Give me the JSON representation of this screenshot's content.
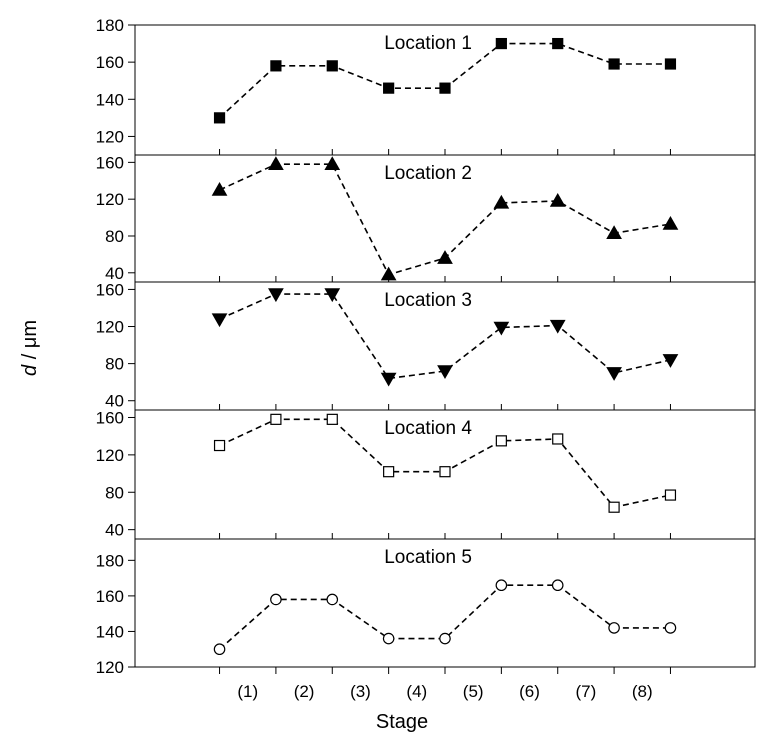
{
  "chart_data": [
    {
      "type": "line",
      "title": "Location 1",
      "marker": "filled-square",
      "ylim": [
        110,
        180
      ],
      "yticks": [
        120,
        140,
        160,
        180
      ],
      "x": [
        1,
        2,
        3,
        4,
        5,
        6,
        7,
        8,
        9
      ],
      "values": [
        130,
        158,
        158,
        146,
        146,
        170,
        170,
        159,
        159
      ]
    },
    {
      "type": "line",
      "title": "Location 2",
      "marker": "filled-triangle-up",
      "ylim": [
        30,
        168
      ],
      "yticks": [
        40,
        80,
        120,
        160
      ],
      "x": [
        1,
        2,
        3,
        4,
        5,
        6,
        7,
        8,
        9
      ],
      "values": [
        130,
        158,
        158,
        38,
        56,
        116,
        118,
        83,
        93
      ]
    },
    {
      "type": "line",
      "title": "Location 3",
      "marker": "filled-triangle-down",
      "ylim": [
        30,
        168
      ],
      "yticks": [
        40,
        80,
        120,
        160
      ],
      "x": [
        1,
        2,
        3,
        4,
        5,
        6,
        7,
        8,
        9
      ],
      "values": [
        128,
        155,
        155,
        64,
        72,
        119,
        121,
        70,
        84
      ]
    },
    {
      "type": "line",
      "title": "Location 4",
      "marker": "open-square",
      "ylim": [
        30,
        168
      ],
      "yticks": [
        40,
        80,
        120,
        160
      ],
      "x": [
        1,
        2,
        3,
        4,
        5,
        6,
        7,
        8,
        9
      ],
      "values": [
        130,
        158,
        158,
        102,
        102,
        135,
        137,
        64,
        77
      ]
    },
    {
      "type": "line",
      "title": "Location 5",
      "marker": "open-circle",
      "ylim": [
        120,
        192
      ],
      "yticks": [
        120,
        140,
        160,
        180
      ],
      "x": [
        1,
        2,
        3,
        4,
        5,
        6,
        7,
        8,
        9
      ],
      "values": [
        130,
        158,
        158,
        136,
        136,
        166,
        166,
        142,
        142
      ]
    }
  ],
  "axes": {
    "xlabel": "Stage",
    "ylabel_italic": "d",
    "ylabel_rest": " / μm",
    "xlim": [
      -0.5,
      10.5
    ],
    "x_tick_positions": [
      1,
      2,
      3,
      4,
      5,
      6,
      7,
      8,
      9
    ],
    "stage_labels": [
      "(1)",
      "(2)",
      "(3)",
      "(4)",
      "(5)",
      "(6)",
      "(7)",
      "(8)"
    ],
    "stage_label_positions": [
      1.5,
      2.5,
      3.5,
      4.5,
      5.5,
      6.5,
      7.5,
      8.5
    ],
    "grid": false
  }
}
